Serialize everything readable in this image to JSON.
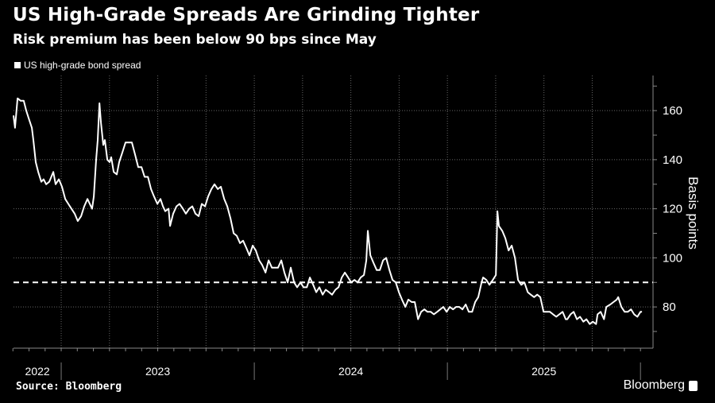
{
  "chart_data": {
    "type": "line",
    "title": "US High-Grade Spreads Are Grinding Tighter",
    "subtitle": "Risk premium has been below 90 bps since May",
    "xlabel": "",
    "ylabel": "Basis points",
    "xlim": [
      2022.753,
      2026.065
    ],
    "ylim": [
      63.2,
      174.3
    ],
    "yticks": [
      80,
      100,
      120,
      140,
      160
    ],
    "ytick_labels": [
      "80",
      "100",
      "120",
      "140",
      "160"
    ],
    "xticks_years": [
      {
        "label": "2022",
        "center": 2022.877
      },
      {
        "label": "2023",
        "center": 2023.5
      },
      {
        "label": "2024",
        "center": 2024.5
      },
      {
        "label": "2025",
        "center": 2025.5
      }
    ],
    "year_boundaries": [
      2023,
      2024,
      2025,
      2026
    ],
    "quarter_gridlines": [
      2023,
      2023.25,
      2023.5,
      2023.75,
      2024,
      2024.25,
      2024.5,
      2024.75,
      2025,
      2025.25,
      2025.5,
      2025.75
    ],
    "grid": true,
    "reference_line": {
      "value": 90,
      "style": "dashed"
    },
    "legend": {
      "position": "top-left",
      "entries": [
        "US high-grade bond spread"
      ]
    },
    "series": [
      {
        "name": "US high-grade bond spread",
        "color": "#ffffff",
        "points": [
          [
            2022.753,
            158
          ],
          [
            2022.761,
            153
          ],
          [
            2022.774,
            165
          ],
          [
            2022.79,
            164
          ],
          [
            2022.806,
            164
          ],
          [
            2022.819,
            160
          ],
          [
            2022.831,
            157
          ],
          [
            2022.848,
            153
          ],
          [
            2022.856,
            148
          ],
          [
            2022.868,
            139
          ],
          [
            2022.881,
            135
          ],
          [
            2022.897,
            131
          ],
          [
            2022.909,
            132
          ],
          [
            2022.922,
            130
          ],
          [
            2022.938,
            131
          ],
          [
            2022.959,
            135
          ],
          [
            2022.971,
            130
          ],
          [
            2022.988,
            132
          ],
          [
            2023.004,
            129
          ],
          [
            2023.021,
            124
          ],
          [
            2023.037,
            122
          ],
          [
            2023.053,
            120
          ],
          [
            2023.07,
            118
          ],
          [
            2023.086,
            115
          ],
          [
            2023.103,
            117
          ],
          [
            2023.119,
            121
          ],
          [
            2023.136,
            124
          ],
          [
            2023.148,
            122
          ],
          [
            2023.16,
            120
          ],
          [
            2023.169,
            125
          ],
          [
            2023.181,
            140
          ],
          [
            2023.189,
            148
          ],
          [
            2023.198,
            163
          ],
          [
            2023.206,
            155
          ],
          [
            2023.218,
            146
          ],
          [
            2023.226,
            148
          ],
          [
            2023.239,
            140
          ],
          [
            2023.251,
            139
          ],
          [
            2023.259,
            141
          ],
          [
            2023.272,
            135
          ],
          [
            2023.288,
            134
          ],
          [
            2023.3,
            139
          ],
          [
            2023.317,
            143
          ],
          [
            2023.333,
            147
          ],
          [
            2023.35,
            147
          ],
          [
            2023.366,
            147
          ],
          [
            2023.383,
            142
          ],
          [
            2023.399,
            137
          ],
          [
            2023.416,
            137
          ],
          [
            2023.432,
            133
          ],
          [
            2023.449,
            133
          ],
          [
            2023.465,
            128
          ],
          [
            2023.481,
            125
          ],
          [
            2023.498,
            122
          ],
          [
            2023.514,
            124
          ],
          [
            2023.527,
            121
          ],
          [
            2023.539,
            119
          ],
          [
            2023.556,
            120
          ],
          [
            2023.564,
            113
          ],
          [
            2023.58,
            118
          ],
          [
            2023.597,
            121
          ],
          [
            2023.613,
            122
          ],
          [
            2023.63,
            120
          ],
          [
            2023.646,
            118
          ],
          [
            2023.663,
            120
          ],
          [
            2023.679,
            121
          ],
          [
            2023.695,
            118
          ],
          [
            2023.712,
            117
          ],
          [
            2023.728,
            122
          ],
          [
            2023.745,
            121
          ],
          [
            2023.761,
            125
          ],
          [
            2023.778,
            128
          ],
          [
            2023.794,
            130
          ],
          [
            2023.811,
            128
          ],
          [
            2023.827,
            129
          ],
          [
            2023.844,
            124
          ],
          [
            2023.86,
            121
          ],
          [
            2023.877,
            116
          ],
          [
            2023.893,
            110
          ],
          [
            2023.909,
            109
          ],
          [
            2023.926,
            106
          ],
          [
            2023.942,
            107
          ],
          [
            2023.959,
            104
          ],
          [
            2023.975,
            101
          ],
          [
            2023.992,
            105
          ],
          [
            2024.008,
            103
          ],
          [
            2024.025,
            99
          ],
          [
            2024.041,
            97
          ],
          [
            2024.058,
            94
          ],
          [
            2024.074,
            99
          ],
          [
            2024.091,
            96
          ],
          [
            2024.123,
            96
          ],
          [
            2024.14,
            99
          ],
          [
            2024.156,
            94
          ],
          [
            2024.173,
            90
          ],
          [
            2024.189,
            96
          ],
          [
            2024.206,
            90
          ],
          [
            2024.222,
            88
          ],
          [
            2024.239,
            90
          ],
          [
            2024.255,
            88
          ],
          [
            2024.272,
            88
          ],
          [
            2024.288,
            92
          ],
          [
            2024.305,
            89
          ],
          [
            2024.321,
            86
          ],
          [
            2024.337,
            88
          ],
          [
            2024.354,
            85
          ],
          [
            2024.37,
            87
          ],
          [
            2024.387,
            86
          ],
          [
            2024.403,
            85
          ],
          [
            2024.42,
            87
          ],
          [
            2024.436,
            88
          ],
          [
            2024.453,
            92
          ],
          [
            2024.469,
            94
          ],
          [
            2024.486,
            92
          ],
          [
            2024.502,
            90
          ],
          [
            2024.519,
            91
          ],
          [
            2024.535,
            90
          ],
          [
            2024.551,
            92
          ],
          [
            2024.568,
            93
          ],
          [
            2024.58,
            99
          ],
          [
            2024.588,
            111
          ],
          [
            2024.601,
            101
          ],
          [
            2024.617,
            98
          ],
          [
            2024.634,
            95
          ],
          [
            2024.65,
            95
          ],
          [
            2024.667,
            99
          ],
          [
            2024.683,
            100
          ],
          [
            2024.7,
            95
          ],
          [
            2024.716,
            91
          ],
          [
            2024.733,
            90
          ],
          [
            2024.749,
            86
          ],
          [
            2024.765,
            83
          ],
          [
            2024.782,
            80
          ],
          [
            2024.798,
            83
          ],
          [
            2024.815,
            82
          ],
          [
            2024.831,
            82
          ],
          [
            2024.848,
            75
          ],
          [
            2024.864,
            78
          ],
          [
            2024.881,
            79
          ],
          [
            2024.897,
            78
          ],
          [
            2024.914,
            78
          ],
          [
            2024.93,
            77
          ],
          [
            2024.947,
            78
          ],
          [
            2024.963,
            79
          ],
          [
            2024.979,
            80
          ],
          [
            2024.996,
            78
          ],
          [
            2025.012,
            80
          ],
          [
            2025.029,
            79
          ],
          [
            2025.045,
            80
          ],
          [
            2025.062,
            80
          ],
          [
            2025.078,
            79
          ],
          [
            2025.095,
            81
          ],
          [
            2025.111,
            78
          ],
          [
            2025.128,
            78
          ],
          [
            2025.144,
            82
          ],
          [
            2025.16,
            84
          ],
          [
            2025.177,
            90
          ],
          [
            2025.185,
            92
          ],
          [
            2025.202,
            91
          ],
          [
            2025.218,
            89
          ],
          [
            2025.235,
            91
          ],
          [
            2025.251,
            93
          ],
          [
            2025.259,
            119
          ],
          [
            2025.267,
            113
          ],
          [
            2025.284,
            111
          ],
          [
            2025.3,
            108
          ],
          [
            2025.317,
            103
          ],
          [
            2025.333,
            105
          ],
          [
            2025.35,
            100
          ],
          [
            2025.366,
            91
          ],
          [
            2025.383,
            89
          ],
          [
            2025.399,
            90
          ],
          [
            2025.416,
            86
          ],
          [
            2025.432,
            85
          ],
          [
            2025.449,
            84
          ],
          [
            2025.465,
            85
          ],
          [
            2025.481,
            84
          ],
          [
            2025.498,
            78
          ],
          [
            2025.514,
            78
          ],
          [
            2025.531,
            78
          ],
          [
            2025.547,
            77
          ],
          [
            2025.564,
            76
          ],
          [
            2025.58,
            77
          ],
          [
            2025.597,
            78
          ],
          [
            2025.613,
            75
          ],
          [
            2025.621,
            75
          ],
          [
            2025.638,
            77
          ],
          [
            2025.654,
            78
          ],
          [
            2025.671,
            75
          ],
          [
            2025.687,
            76
          ],
          [
            2025.704,
            74
          ],
          [
            2025.72,
            75
          ],
          [
            2025.737,
            73
          ],
          [
            2025.753,
            74
          ],
          [
            2025.77,
            73
          ],
          [
            2025.778,
            77
          ],
          [
            2025.794,
            78
          ],
          [
            2025.811,
            75
          ],
          [
            2025.823,
            80
          ],
          [
            2025.844,
            81
          ],
          [
            2025.86,
            82
          ],
          [
            2025.877,
            83
          ],
          [
            2025.885,
            84
          ],
          [
            2025.901,
            80
          ],
          [
            2025.918,
            78
          ],
          [
            2025.934,
            78
          ],
          [
            2025.951,
            79
          ],
          [
            2025.967,
            77
          ],
          [
            2025.984,
            76
          ],
          [
            2026.0,
            78
          ],
          [
            2026.008,
            78
          ]
        ]
      }
    ]
  },
  "footer": {
    "source": "Source: Bloomberg",
    "brand": "Bloomberg"
  }
}
